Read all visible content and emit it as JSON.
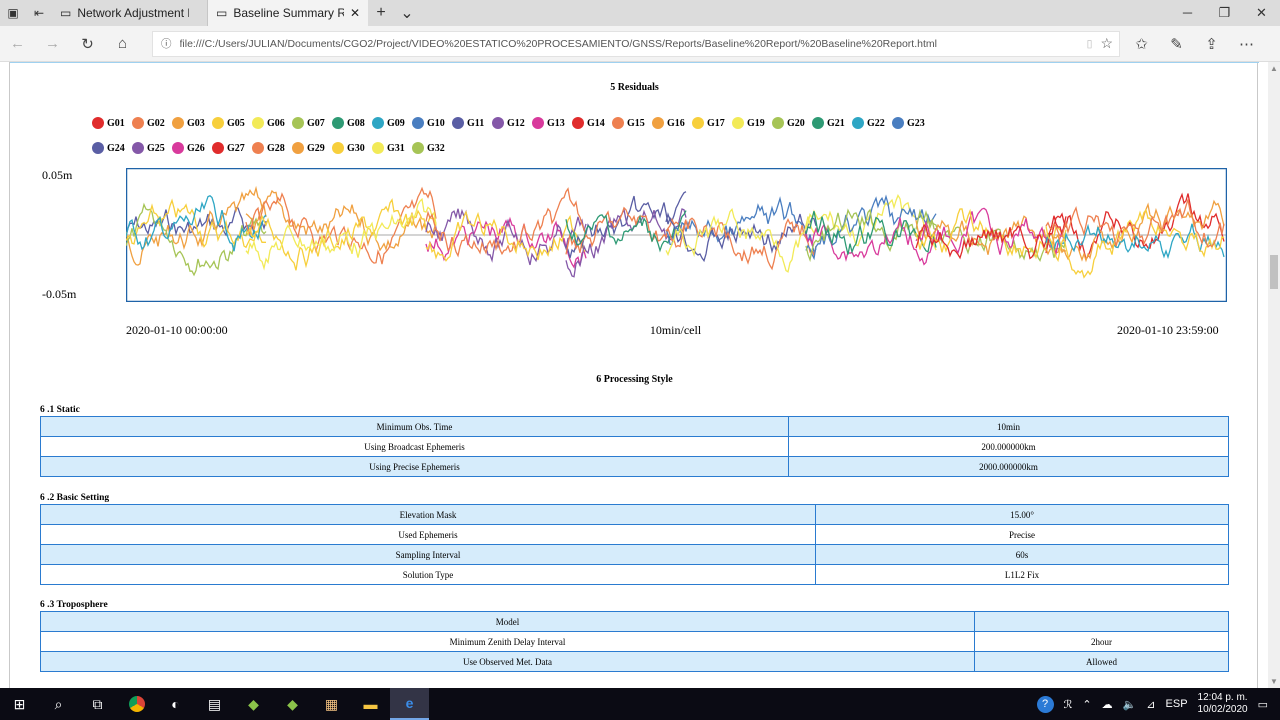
{
  "browser": {
    "tabs": [
      {
        "label": "Network Adjustment Report",
        "active": false
      },
      {
        "label": "Baseline Summary Repo",
        "active": true
      }
    ],
    "url": "file:///C:/Users/JULIAN/Documents/CGO2/Project/VIDEO%20ESTATICO%20PROCESAMIENTO/GNSS/Reports/Baseline%20Report/%20Baseline%20Report.html"
  },
  "residuals": {
    "title": "5 Residuals",
    "legend": [
      {
        "name": "G01",
        "color": "#e02c2c"
      },
      {
        "name": "G02",
        "color": "#ee8050"
      },
      {
        "name": "G03",
        "color": "#f0a040"
      },
      {
        "name": "G05",
        "color": "#f7cf3c"
      },
      {
        "name": "G06",
        "color": "#f2ea58"
      },
      {
        "name": "G07",
        "color": "#a6c456"
      },
      {
        "name": "G08",
        "color": "#2e9a74"
      },
      {
        "name": "G09",
        "color": "#2ea6c4"
      },
      {
        "name": "G10",
        "color": "#4a7ec0"
      },
      {
        "name": "G11",
        "color": "#5a5ea4"
      },
      {
        "name": "G12",
        "color": "#8458a8"
      },
      {
        "name": "G13",
        "color": "#d83a9c"
      },
      {
        "name": "G14",
        "color": "#e02c2c"
      },
      {
        "name": "G15",
        "color": "#ee8050"
      },
      {
        "name": "G16",
        "color": "#f0a040"
      },
      {
        "name": "G17",
        "color": "#f7cf3c"
      },
      {
        "name": "G19",
        "color": "#f2ea58"
      },
      {
        "name": "G20",
        "color": "#a6c456"
      },
      {
        "name": "G21",
        "color": "#2e9a74"
      },
      {
        "name": "G22",
        "color": "#2ea6c4"
      },
      {
        "name": "G23",
        "color": "#4a7ec0"
      },
      {
        "name": "G24",
        "color": "#5a5ea4"
      },
      {
        "name": "G25",
        "color": "#8458a8"
      },
      {
        "name": "G26",
        "color": "#d83a9c"
      },
      {
        "name": "G27",
        "color": "#e02c2c"
      },
      {
        "name": "G28",
        "color": "#ee8050"
      },
      {
        "name": "G29",
        "color": "#f0a040"
      },
      {
        "name": "G30",
        "color": "#f7cf3c"
      },
      {
        "name": "G31",
        "color": "#f2ea58"
      },
      {
        "name": "G32",
        "color": "#a6c456"
      }
    ],
    "y_top": "0.05m",
    "y_bottom": "-0.05m",
    "x_start": "2020-01-10 00:00:00",
    "x_mid": "10min/cell",
    "x_end": "2020-01-10 23:59:00"
  },
  "chart_data": {
    "type": "line",
    "ylim": [
      -0.05,
      0.05
    ],
    "x_range": [
      "2020-01-10 00:00:00",
      "2020-01-10 23:59:00"
    ],
    "ylabel_top": "0.05m",
    "ylabel_bottom": "-0.05m",
    "series_names": [
      "G01",
      "G02",
      "G03",
      "G05",
      "G06",
      "G07",
      "G08",
      "G09",
      "G10",
      "G11",
      "G12",
      "G13",
      "G14",
      "G15",
      "G16",
      "G17",
      "G19",
      "G20",
      "G21",
      "G22",
      "G23",
      "G24",
      "G25",
      "G26",
      "G27",
      "G28",
      "G29",
      "G30",
      "G31",
      "G32"
    ]
  },
  "processing": {
    "title": "6 Processing Style",
    "static": {
      "heading": "6 .1 Static",
      "rows": [
        [
          "Minimum Obs. Time",
          "10min"
        ],
        [
          "Using Broadcast Ephemeris",
          "200.000000km"
        ],
        [
          "Using Precise Ephemeris",
          "2000.000000km"
        ]
      ]
    },
    "basic": {
      "heading": "6 .2 Basic Setting",
      "rows": [
        [
          "Elevation Mask",
          "15.00°"
        ],
        [
          "Used Ephemeris",
          "Precise"
        ],
        [
          "Sampling Interval",
          "60s"
        ],
        [
          "Solution Type",
          "L1L2 Fix"
        ]
      ]
    },
    "tropo": {
      "heading": "6 .3 Troposphere",
      "rows": [
        [
          "Model",
          ""
        ],
        [
          "Minimum Zenith Delay Interval",
          "2hour"
        ],
        [
          "Use Observed Met. Data",
          "Allowed"
        ]
      ]
    }
  },
  "taskbar": {
    "lang": "ESP",
    "time": "12:04 p. m.",
    "date": "10/02/2020"
  }
}
